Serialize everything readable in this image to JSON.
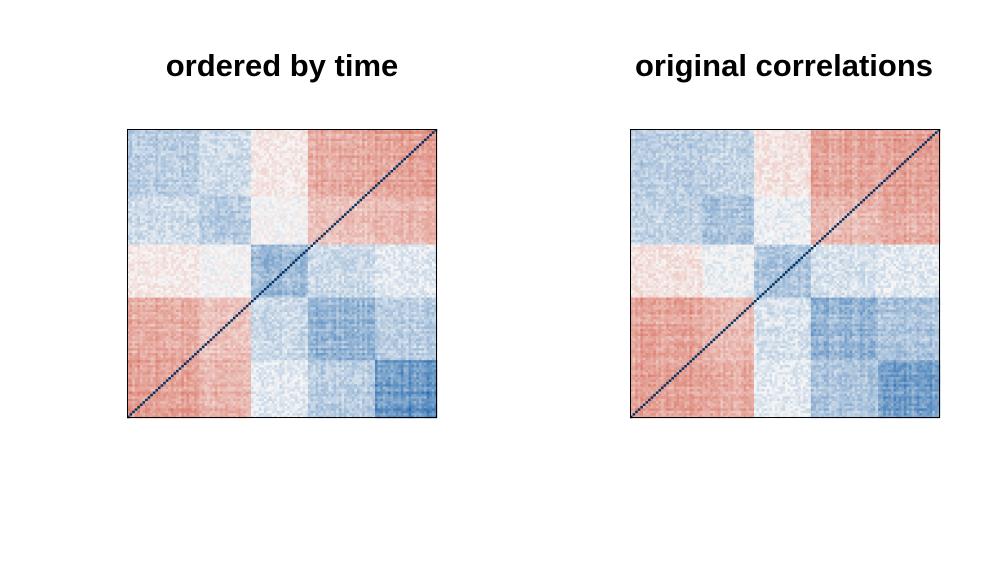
{
  "chart_data": [
    {
      "type": "heatmap",
      "title": "ordered by time",
      "xlabel": "",
      "ylabel": "",
      "grid": false,
      "legend": "none",
      "colors": {
        "negative": "#d6604d",
        "neutral": "#f7f7f7",
        "positive": "#2166ac",
        "diagonal": "#053061"
      },
      "value_range": [
        -1,
        1
      ],
      "block_order": [
        "A",
        "B",
        "C",
        "D",
        "E"
      ],
      "block_sizes": [
        28,
        20,
        22,
        26,
        24
      ],
      "block_correlations": [
        [
          0.3,
          0.2,
          -0.1,
          -0.5,
          -0.6
        ],
        [
          0.2,
          0.3,
          0.0,
          -0.35,
          -0.45
        ],
        [
          -0.1,
          0.0,
          0.4,
          0.2,
          0.1
        ],
        [
          -0.5,
          -0.35,
          0.2,
          0.45,
          0.3
        ],
        [
          -0.6,
          -0.45,
          0.1,
          0.3,
          0.7
        ]
      ]
    },
    {
      "type": "heatmap",
      "title": "original correlations",
      "xlabel": "",
      "ylabel": "",
      "grid": false,
      "legend": "none",
      "colors": {
        "negative": "#d6604d",
        "neutral": "#f7f7f7",
        "positive": "#2166ac",
        "diagonal": "#053061"
      },
      "value_range": [
        -1,
        1
      ],
      "block_order": [
        "A",
        "B",
        "C",
        "D",
        "E"
      ],
      "block_sizes": [
        28,
        20,
        22,
        26,
        24
      ],
      "block_correlations": [
        [
          0.3,
          0.25,
          -0.15,
          -0.55,
          -0.6
        ],
        [
          0.25,
          0.35,
          0.05,
          -0.4,
          -0.5
        ],
        [
          -0.15,
          0.05,
          0.35,
          0.15,
          0.1
        ],
        [
          -0.55,
          -0.4,
          0.15,
          0.45,
          0.35
        ],
        [
          -0.6,
          -0.5,
          0.1,
          0.35,
          0.65
        ]
      ]
    }
  ]
}
